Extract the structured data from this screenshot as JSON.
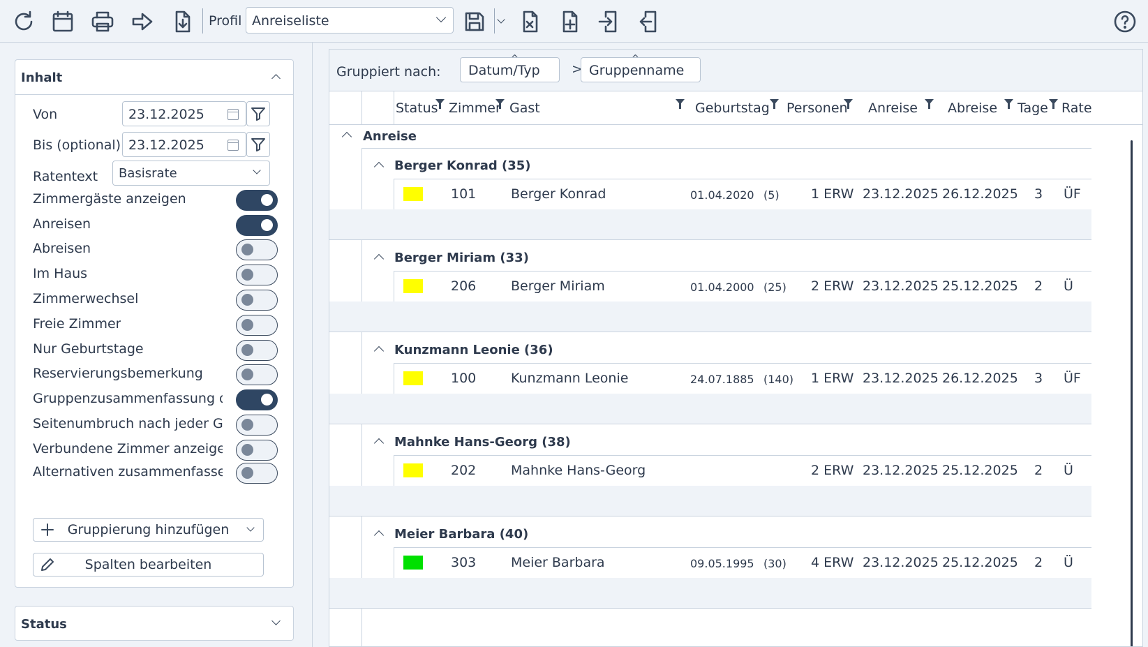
{
  "toolbar": {
    "icons": [
      "refresh-icon",
      "calendar-icon",
      "print-icon",
      "forward-icon",
      "download-icon",
      "save-icon",
      "file-close-icon",
      "file-add-icon",
      "import-icon",
      "export-icon",
      "help-icon"
    ],
    "profil_label": "Profil",
    "profil_value": "Anreiseliste"
  },
  "sidebar": {
    "content_title": "Inhalt",
    "von_label": "Von",
    "von_value": "23.12.2025",
    "bis_label": "Bis (optional)",
    "bis_value": "23.12.2025",
    "ratentext_label": "Ratentext",
    "ratentext_value": "Basisrate",
    "toggles": [
      {
        "label": "Zimmergäste anzeigen",
        "on": true
      },
      {
        "label": "Anreisen",
        "on": true
      },
      {
        "label": "Abreisen",
        "on": false
      },
      {
        "label": "Im Haus",
        "on": false
      },
      {
        "label": "Zimmerwechsel",
        "on": false
      },
      {
        "label": "Freie Zimmer",
        "on": false
      },
      {
        "label": "Nur Geburtstage",
        "on": false
      },
      {
        "label": "Reservierungsbemerkung",
        "on": false
      },
      {
        "label": "Gruppenzusammenfassung drucken",
        "on": true
      },
      {
        "label": "Seitenumbruch nach jeder Gruppe",
        "on": false
      },
      {
        "label": "Verbundene Zimmer anzeigen",
        "on": false
      },
      {
        "label": "Alternativen zusammenfassen",
        "on": false
      }
    ],
    "add_grouping_label": "Gruppierung hinzufügen",
    "edit_columns_label": "Spalten bearbeiten",
    "status_title": "Status"
  },
  "grid": {
    "grouped_by_label": "Gruppiert nach:",
    "group_chips": [
      "Datum/Typ",
      "Gruppenname"
    ],
    "chip_separator": ">",
    "columns": [
      "Status",
      "Zimmer",
      "Gast",
      "Geburtstag",
      "Personen",
      "Anreise",
      "Abreise",
      "Tage",
      "Rate"
    ],
    "top_group": "Anreise",
    "groups": [
      {
        "title": "Berger Konrad (35)",
        "status_color": "#ffff00",
        "zimmer": "101",
        "gast": "Berger Konrad",
        "geburtstag": "01.04.2020",
        "alter": "(5)",
        "personen": "1 ERW",
        "anreise": "23.12.2025",
        "abreise": "26.12.2025",
        "tage": "3",
        "rate": "ÜF"
      },
      {
        "title": "Berger Miriam (33)",
        "status_color": "#ffff00",
        "zimmer": "206",
        "gast": "Berger Miriam",
        "geburtstag": "01.04.2000",
        "alter": "(25)",
        "personen": "2 ERW",
        "anreise": "23.12.2025",
        "abreise": "25.12.2025",
        "tage": "2",
        "rate": "Ü"
      },
      {
        "title": "Kunzmann Leonie (36)",
        "status_color": "#ffff00",
        "zimmer": "100",
        "gast": "Kunzmann Leonie",
        "geburtstag": "24.07.1885",
        "alter": "(140)",
        "personen": "1 ERW",
        "anreise": "23.12.2025",
        "abreise": "26.12.2025",
        "tage": "3",
        "rate": "ÜF"
      },
      {
        "title": "Mahnke Hans-Georg (38)",
        "status_color": "#ffff00",
        "zimmer": "202",
        "gast": "Mahnke Hans-Georg",
        "geburtstag": "",
        "alter": "",
        "personen": "2 ERW",
        "anreise": "23.12.2025",
        "abreise": "25.12.2025",
        "tage": "2",
        "rate": "Ü"
      },
      {
        "title": "Meier Barbara (40)",
        "status_color": "#00e000",
        "zimmer": "303",
        "gast": "Meier Barbara",
        "geburtstag": "09.05.1995",
        "alter": "(30)",
        "personen": "4 ERW",
        "anreise": "23.12.2025",
        "abreise": "25.12.2025",
        "tage": "2",
        "rate": "Ü"
      }
    ]
  }
}
